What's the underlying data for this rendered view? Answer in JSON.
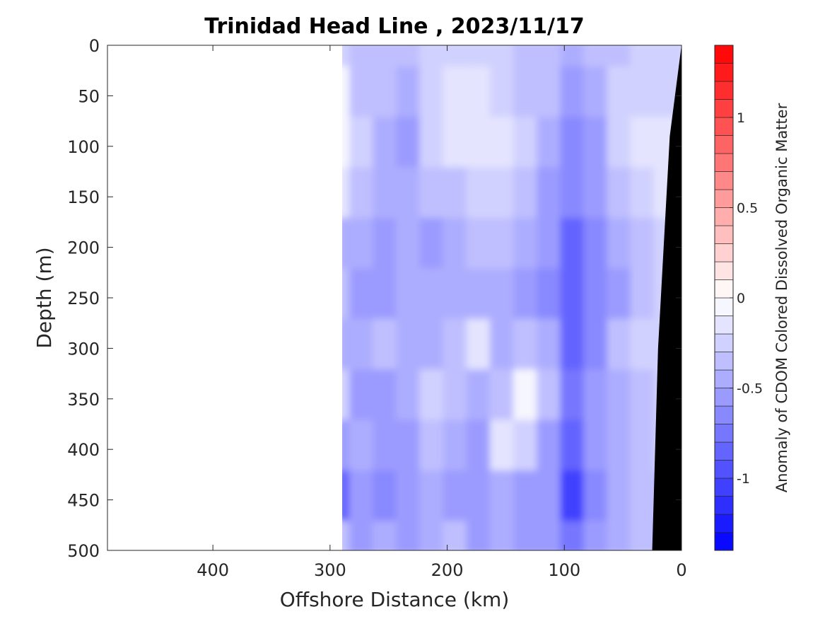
{
  "chart_data": {
    "type": "heatmap",
    "title": "Trinidad Head Line , 2023/11/17",
    "xlabel": "Offshore Distance (km)",
    "ylabel": "Depth (m)",
    "xlim": [
      490,
      0
    ],
    "ylim": [
      0,
      500
    ],
    "x_ticks": [
      400,
      300,
      200,
      100,
      0
    ],
    "x_tick_labels": [
      "400",
      "300",
      "200",
      "100",
      "0"
    ],
    "y_ticks": [
      0,
      50,
      100,
      150,
      200,
      250,
      300,
      350,
      400,
      450,
      500
    ],
    "y_tick_labels": [
      "0",
      "50",
      "100",
      "150",
      "200",
      "250",
      "300",
      "350",
      "400",
      "450",
      "500"
    ],
    "data_x_range_km": [
      290,
      0
    ],
    "bathymetry": {
      "depth_m": [
        0,
        90,
        300,
        500
      ],
      "distance_km": [
        0,
        10,
        20,
        25
      ]
    },
    "colorbar": {
      "label": "Anomaly of CDOM Colored Dissolved Organic Matter",
      "range": [
        -1.4,
        1.4
      ],
      "levels": 28,
      "ticks": [
        1,
        0.5,
        0,
        -0.5,
        -1
      ],
      "tick_labels": [
        "1",
        "0.5",
        "0",
        "-0.5",
        "-1"
      ],
      "low_color": "#0000ff",
      "mid_color": "#ffffff",
      "high_color": "#ff0000"
    },
    "grid": false,
    "anomaly_pattern": {
      "x_km": [
        290,
        270,
        250,
        230,
        210,
        190,
        170,
        150,
        130,
        110,
        90,
        70,
        50,
        30,
        10
      ],
      "depth_m": [
        0,
        50,
        100,
        150,
        200,
        250,
        300,
        350,
        400,
        450,
        500
      ],
      "values": [
        [
          -0.25,
          -0.4,
          -0.4,
          -0.35,
          -0.3,
          -0.25,
          -0.25,
          -0.3,
          -0.4,
          -0.4,
          -0.45,
          -0.4,
          -0.35,
          -0.3,
          -0.3
        ],
        [
          -0.1,
          -0.35,
          -0.4,
          -0.45,
          -0.3,
          -0.2,
          -0.2,
          -0.25,
          -0.35,
          -0.4,
          -0.6,
          -0.45,
          -0.3,
          -0.25,
          -0.25
        ],
        [
          -0.05,
          -0.3,
          -0.45,
          -0.55,
          -0.25,
          -0.2,
          -0.2,
          -0.2,
          -0.3,
          -0.45,
          -0.7,
          -0.55,
          -0.3,
          -0.2,
          -0.15
        ],
        [
          -0.15,
          -0.35,
          -0.5,
          -0.5,
          -0.4,
          -0.35,
          -0.3,
          -0.3,
          -0.4,
          -0.55,
          -0.7,
          -0.6,
          -0.4,
          -0.3,
          -0.2
        ],
        [
          -0.45,
          -0.5,
          -0.55,
          -0.5,
          -0.55,
          -0.45,
          -0.4,
          -0.4,
          -0.5,
          -0.6,
          -0.85,
          -0.65,
          -0.5,
          -0.4,
          -0.3
        ],
        [
          -0.4,
          -0.55,
          -0.6,
          -0.5,
          -0.45,
          -0.5,
          -0.5,
          -0.45,
          -0.55,
          -0.65,
          -0.85,
          -0.65,
          -0.55,
          -0.4,
          -0.3
        ],
        [
          -0.45,
          -0.5,
          -0.4,
          -0.5,
          -0.45,
          -0.4,
          -0.2,
          -0.5,
          -0.4,
          -0.5,
          -0.85,
          -0.7,
          -0.4,
          -0.3,
          -0.25
        ],
        [
          -0.3,
          -0.6,
          -0.55,
          -0.45,
          -0.3,
          -0.4,
          -0.45,
          -0.35,
          -0.1,
          -0.4,
          -0.75,
          -0.55,
          -0.45,
          -0.35,
          -0.3
        ],
        [
          -0.55,
          -0.5,
          -0.6,
          -0.55,
          -0.4,
          -0.5,
          -0.6,
          -0.2,
          -0.3,
          -0.55,
          -0.8,
          -0.6,
          -0.45,
          -0.4,
          -0.3
        ],
        [
          -0.85,
          -0.6,
          -0.65,
          -0.55,
          -0.45,
          -0.6,
          -0.6,
          -0.5,
          -0.55,
          -0.6,
          -1.05,
          -0.7,
          -0.45,
          -0.4,
          -0.35
        ],
        [
          -0.4,
          -0.55,
          -0.5,
          -0.55,
          -0.45,
          -0.4,
          -0.55,
          -0.5,
          -0.6,
          -0.6,
          -0.75,
          -0.6,
          -0.5,
          -0.4,
          -0.35
        ]
      ]
    }
  }
}
